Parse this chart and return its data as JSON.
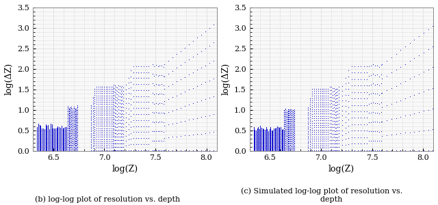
{
  "xlim": [
    6.3,
    8.1
  ],
  "ylim": [
    0,
    3.5
  ],
  "xticks": [
    6.5,
    7.0,
    7.5,
    8.0
  ],
  "yticks": [
    0,
    0.5,
    1.0,
    1.5,
    2.0,
    2.5,
    3.0,
    3.5
  ],
  "xlabel": "log(Z)",
  "ylabel": "log(ΔZ)",
  "line_color": "#0000cc",
  "grid_color": "#bbbbbb",
  "caption_b": "(b) log-log plot of resolution vs. depth",
  "caption_c": "(c) Simulated log-log plot of resolution vs.\n        depth",
  "figsize": [
    6.4,
    3.0
  ],
  "dpi": 100,
  "bg_color": "#f0f0f0"
}
